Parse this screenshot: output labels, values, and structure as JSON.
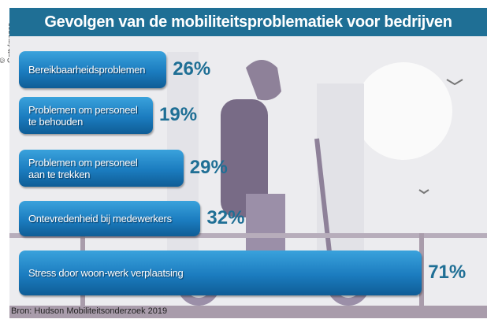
{
  "credit": "© GettyImages",
  "chart_data": {
    "type": "bar",
    "orientation": "horizontal",
    "title": "Gevolgen van de mobiliteitsproblematiek voor bedrijven",
    "categories": [
      "Bereikbaarheidsproblemen",
      "Problemen om personeel  te behouden",
      "Problemen om personeel aan te trekken",
      "Ontevredenheid bij medewerkers",
      "Stress door woon-werk verplaatsing"
    ],
    "values": [
      26,
      19,
      29,
      32,
      71
    ],
    "value_labels": [
      "26%",
      "19%",
      "29%",
      "32%",
      "71%"
    ],
    "unit": "%",
    "source": "Bron: Hudson Mobiliteitsonderzoek 2019"
  },
  "colors": {
    "title_bg": "#1f6f95",
    "bar": "#1b7cbf",
    "value": "#1f6f95"
  }
}
